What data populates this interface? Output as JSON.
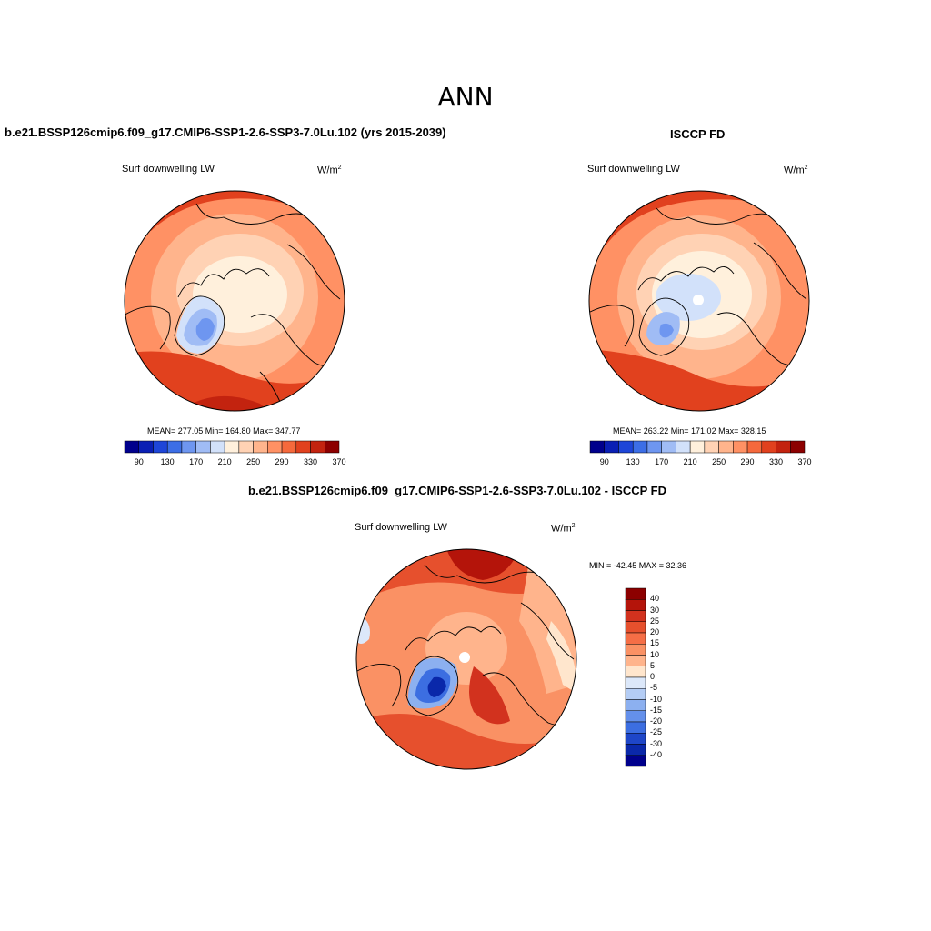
{
  "page": {
    "season": "ANN"
  },
  "panels": [
    {
      "id": "model",
      "title": "b.e21.BSSP126cmip6.f09_g17.CMIP6-SSP1-2.6-SSP3-7.0Lu.102 (yrs 2015-2039)",
      "variable": "Surf downwelling LW",
      "units_base": "W/m",
      "units_exp": "2",
      "stats": "MEAN= 277.05  Min= 164.80  Max= 347.77",
      "colorbar_labels": [
        "90",
        "130",
        "170",
        "210",
        "250",
        "290",
        "330",
        "370"
      ]
    },
    {
      "id": "obs",
      "title": "ISCCP FD",
      "variable": "Surf downwelling LW",
      "units_base": "W/m",
      "units_exp": "2",
      "stats": "MEAN= 263.22  Min= 171.02  Max= 328.15",
      "colorbar_labels": [
        "90",
        "130",
        "170",
        "210",
        "250",
        "290",
        "330",
        "370"
      ]
    },
    {
      "id": "diff",
      "title": "b.e21.BSSP126cmip6.f09_g17.CMIP6-SSP1-2.6-SSP3-7.0Lu.102 - ISCCP FD",
      "variable": "Surf downwelling LW",
      "units_base": "W/m",
      "units_exp": "2",
      "stats": "MIN = -42.45 MAX =  32.36",
      "colorbar_labels": [
        "40",
        "30",
        "25",
        "20",
        "15",
        "10",
        "5",
        "0",
        "-5",
        "-10",
        "-15",
        "-20",
        "-25",
        "-30",
        "-40"
      ]
    }
  ],
  "palettes": {
    "abs": [
      "#00008c",
      "#0a1fb4",
      "#1e46d8",
      "#3c6ee6",
      "#6e96f0",
      "#a0bcf5",
      "#d2e1fa",
      "#fff0dc",
      "#ffd2b4",
      "#ffb48c",
      "#ff9164",
      "#f5693c",
      "#e1411e",
      "#c3230f",
      "#8c0000"
    ],
    "diff": [
      "#8c0000",
      "#b4140a",
      "#d2321e",
      "#e6502d",
      "#f56e46",
      "#fa9164",
      "#ffb48c",
      "#ffe6cd",
      "#dce8fa",
      "#b4cdf5",
      "#8cb0f0",
      "#6490eb",
      "#3c6ee1",
      "#1e46c8",
      "#0a28aa",
      "#00008c"
    ]
  }
}
